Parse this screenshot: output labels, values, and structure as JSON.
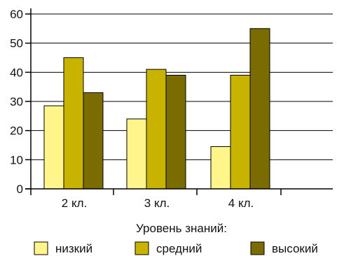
{
  "chart_data": {
    "type": "bar",
    "categories": [
      "2 кл.",
      "3 кл.",
      "4 кл."
    ],
    "series": [
      {
        "name": "низкий",
        "values": [
          28.5,
          24,
          14.5
        ],
        "color": "#FFF58A"
      },
      {
        "name": "средний",
        "values": [
          45,
          41,
          39
        ],
        "color": "#C8B400"
      },
      {
        "name": "высокий",
        "values": [
          33,
          39,
          55
        ],
        "color": "#7A6C00"
      }
    ],
    "title": "",
    "xlabel": "",
    "ylabel": "",
    "ylim": [
      0,
      60
    ],
    "yticks": [
      0,
      10,
      20,
      30,
      40,
      50,
      60
    ],
    "grid": true,
    "legend_title": "Уровень знаний:",
    "legend_position": "bottom"
  }
}
